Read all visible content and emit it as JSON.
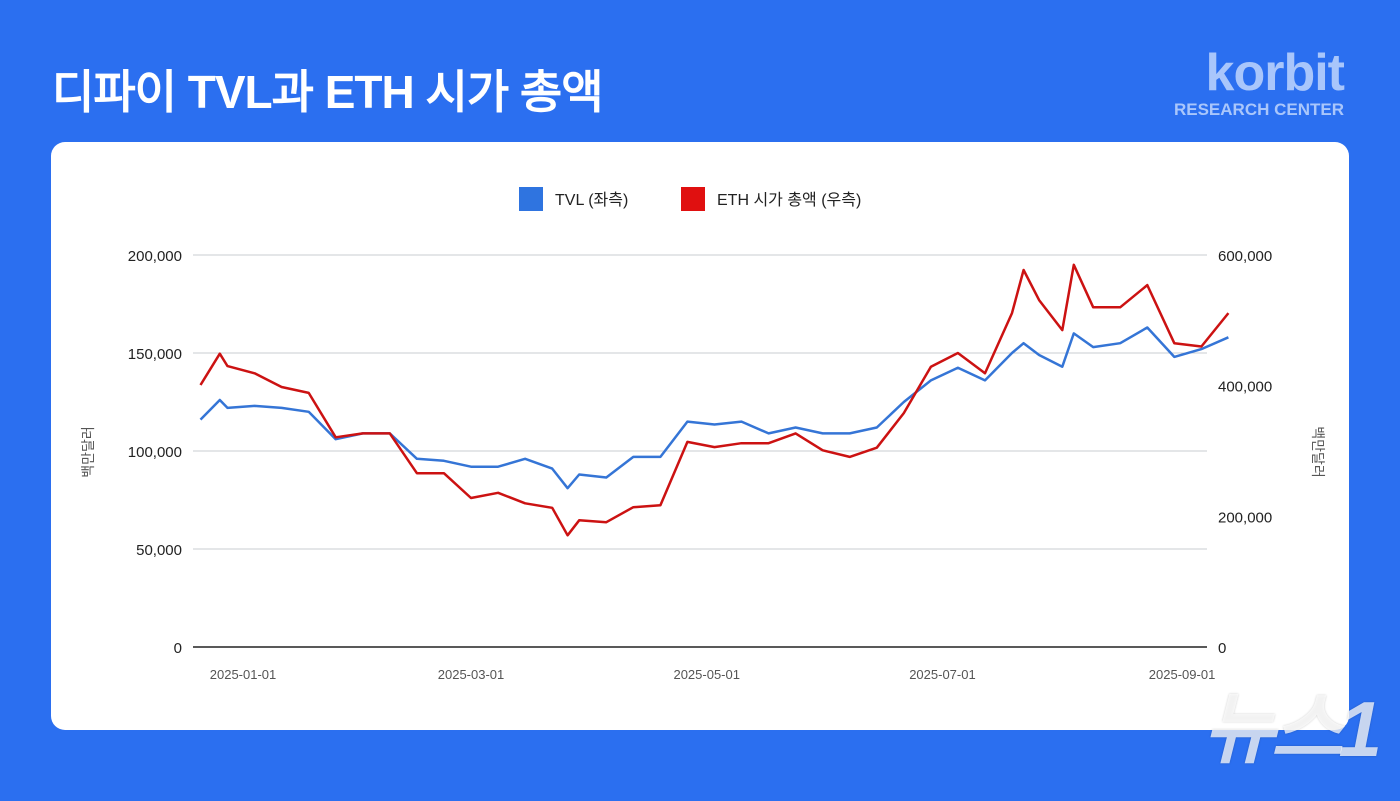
{
  "header": {
    "title": "디파이 TVL과 ETH 시가 총액"
  },
  "logo": {
    "brand": "korbit",
    "sub": "RESEARCH CENTER"
  },
  "watermark": "뉴스1",
  "colors": {
    "background": "#2b6ff0",
    "tvl": "#3575d6",
    "eth": "#cc1212",
    "legend_tvl": "#2f74e0",
    "legend_eth": "#e01010"
  },
  "chart_data": {
    "type": "line",
    "title": "",
    "legend_position": "top-center",
    "grid": true,
    "x_ticks": [
      "2025-01-01",
      "2025-03-01",
      "2025-05-01",
      "2025-07-01",
      "2025-09-01"
    ],
    "y_left": {
      "label": "백만달러",
      "range": [
        0,
        200000
      ],
      "ticks": [
        "0",
        "50,000",
        "100,000",
        "150,000",
        "200,000"
      ]
    },
    "y_right": {
      "label": "백만달러",
      "range": [
        0,
        600000
      ],
      "ticks": [
        "0",
        "200,000",
        "400,000",
        "600,000"
      ]
    },
    "x": [
      "2024-12-21",
      "2024-12-26",
      "2024-12-28",
      "2025-01-04",
      "2025-01-11",
      "2025-01-18",
      "2025-01-25",
      "2025-02-01",
      "2025-02-08",
      "2025-02-15",
      "2025-02-22",
      "2025-03-01",
      "2025-03-08",
      "2025-03-15",
      "2025-03-22",
      "2025-03-26",
      "2025-03-29",
      "2025-04-05",
      "2025-04-12",
      "2025-04-19",
      "2025-04-26",
      "2025-05-03",
      "2025-05-10",
      "2025-05-17",
      "2025-05-24",
      "2025-05-31",
      "2025-06-07",
      "2025-06-14",
      "2025-06-21",
      "2025-06-28",
      "2025-07-05",
      "2025-07-12",
      "2025-07-19",
      "2025-07-22",
      "2025-07-26",
      "2025-08-01",
      "2025-08-04",
      "2025-08-09",
      "2025-08-16",
      "2025-08-23",
      "2025-08-30",
      "2025-09-06",
      "2025-09-13"
    ],
    "series": [
      {
        "name": "TVL (좌측)",
        "axis": "left",
        "values": [
          116000,
          126000,
          122000,
          123000,
          122000,
          120000,
          106000,
          109000,
          109000,
          96000,
          95000,
          92000,
          92000,
          96000,
          91000,
          81000,
          88000,
          86500,
          97000,
          97000,
          115000,
          113500,
          115000,
          109000,
          112000,
          109000,
          109000,
          112000,
          125000,
          136000,
          142500,
          136000,
          150000,
          155000,
          149000,
          143000,
          160000,
          153000,
          155000,
          163000,
          148000,
          152000,
          158000
        ]
      },
      {
        "name": "ETH 시가 총액 (우측)",
        "axis": "right",
        "values": [
          401000,
          449000,
          430000,
          419000,
          398000,
          389000,
          321000,
          327000,
          327000,
          266000,
          266000,
          228000,
          236000,
          220000,
          213000,
          171000,
          194000,
          191000,
          214000,
          217000,
          314000,
          306000,
          312000,
          312000,
          327000,
          301000,
          291000,
          305000,
          358000,
          429000,
          450000,
          419000,
          511000,
          577000,
          531000,
          485000,
          585000,
          520000,
          520000,
          554000,
          465000,
          460000,
          511000
        ]
      }
    ]
  }
}
